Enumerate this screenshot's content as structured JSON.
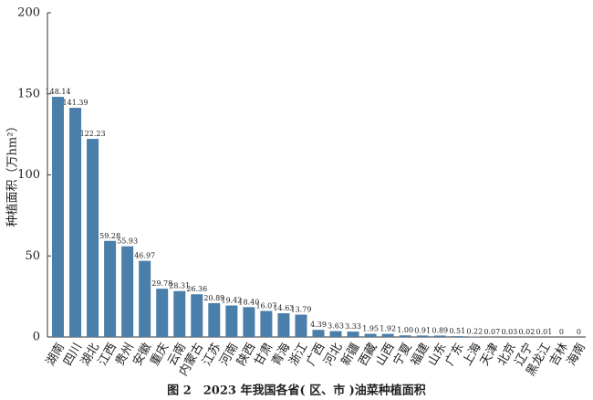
{
  "chart_data": {
    "type": "bar",
    "title": "图 2　2023 年我国各省( 区、市 )油菜种植面积",
    "y_label": "种植面积（万hm²）",
    "categories": [
      "湖南",
      "四川",
      "湖北",
      "江西",
      "贵州",
      "安徽",
      "重庆",
      "云南",
      "内蒙古",
      "江苏",
      "河南",
      "陕西",
      "甘肃",
      "青海",
      "浙江",
      "广西",
      "河北",
      "新疆",
      "西藏",
      "山西",
      "宁夏",
      "福建",
      "山东",
      "广东",
      "上海",
      "天津",
      "北京",
      "辽宁",
      "黑龙江",
      "吉林",
      "海南"
    ],
    "values": [
      148.14,
      141.39,
      122.23,
      59.28,
      55.93,
      46.97,
      29.78,
      28.31,
      26.36,
      20.89,
      19.42,
      18.4,
      16.07,
      14.63,
      13.79,
      4.39,
      3.63,
      3.33,
      1.95,
      1.92,
      1,
      0.91,
      0.89,
      0.51,
      0.22,
      0.07,
      0.03,
      0.02,
      0.01,
      0,
      0
    ],
    "value_labels": [
      "148.14",
      "141.39",
      "122.23",
      "59.28",
      "55.93",
      "46.97",
      "29.78",
      "28.31",
      "26.36",
      "20.89",
      "19.42",
      "18.40",
      "16.07",
      "14.63",
      "13.79",
      "4.39",
      "3.63",
      "3.33",
      "1.95",
      "1.92",
      "1.00",
      "0.91",
      "0.89",
      "0.51",
      "0.22",
      "0.07",
      "0.03",
      "0.02",
      "0.01",
      "0",
      "0"
    ],
    "color": "#4a7eab",
    "ylim": [
      0,
      200
    ],
    "yticks": [
      0,
      50,
      100,
      150,
      200
    ],
    "grid": false
  }
}
